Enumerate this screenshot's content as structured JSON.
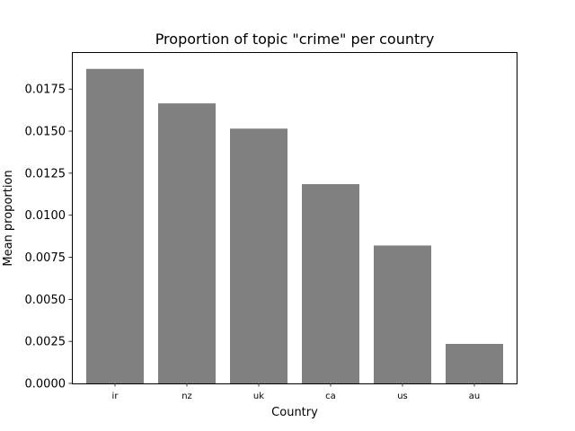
{
  "chart_data": {
    "type": "bar",
    "title": "Proportion of topic \"crime\" per country",
    "xlabel": "Country",
    "ylabel": "Mean proportion",
    "categories": [
      "ir",
      "nz",
      "uk",
      "ca",
      "us",
      "au"
    ],
    "values": [
      0.0187,
      0.01665,
      0.01515,
      0.01185,
      0.0082,
      0.00235
    ],
    "ylim": [
      0,
      0.0197
    ],
    "yticks": [
      0.0,
      0.0025,
      0.005,
      0.0075,
      0.01,
      0.0125,
      0.015,
      0.0175
    ],
    "ytick_labels": [
      "0.0000",
      "0.0025",
      "0.0050",
      "0.0075",
      "0.0100",
      "0.0125",
      "0.0150",
      "0.0175"
    ],
    "bar_color": "#808080",
    "grid": false,
    "legend": "none"
  }
}
